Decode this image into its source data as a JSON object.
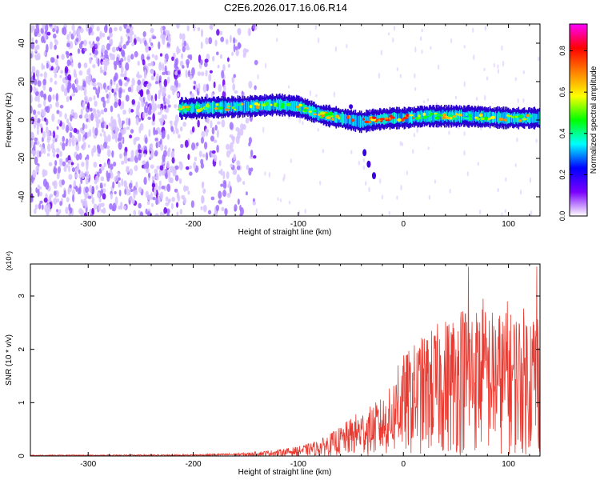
{
  "title": "C2E6.2026.017.16.06.R14",
  "chart_data": [
    {
      "type": "heatmap",
      "xlabel": "Height of straight line (km)",
      "ylabel": "Frequency (Hz)",
      "xlim": [
        -355,
        130
      ],
      "ylim": [
        -50,
        50
      ],
      "xticks": [
        -300,
        -200,
        -100,
        0,
        100
      ],
      "yticks": [
        -40,
        -20,
        0,
        20,
        40
      ],
      "colorbar": {
        "label": "Normalized spectral amplitude",
        "range": [
          0.0,
          0.93
        ],
        "ticks": [
          0.0,
          0.2,
          0.4,
          0.6,
          0.8
        ],
        "colormap": [
          "#ffffff",
          "#7a00ff",
          "#0000ff",
          "#00ffff",
          "#00ff00",
          "#ffff00",
          "#ff8000",
          "#ff0000",
          "#ff00ff"
        ]
      },
      "ridge": {
        "start_km": -213,
        "points": [
          [
            -213,
            6
          ],
          [
            -150,
            7
          ],
          [
            -120,
            8
          ],
          [
            -100,
            7
          ],
          [
            -80,
            3
          ],
          [
            -60,
            1
          ],
          [
            -40,
            -1
          ],
          [
            -30,
            0
          ],
          [
            -10,
            1
          ],
          [
            0,
            1
          ],
          [
            20,
            2
          ],
          [
            60,
            2
          ],
          [
            100,
            1
          ],
          [
            130,
            1
          ]
        ]
      },
      "spur": {
        "points": [
          [
            -37,
            -17
          ],
          [
            -33,
            -23
          ],
          [
            -28,
            -29
          ]
        ]
      }
    },
    {
      "type": "line",
      "xlabel": "Height of straight line (km)",
      "ylabel": "SNR (10 * v/v)",
      "multiplier": "(x10⁴)",
      "xlim": [
        -355,
        130
      ],
      "ylim": [
        0,
        3.6
      ],
      "xticks": [
        -300,
        -200,
        -100,
        0,
        100
      ],
      "yticks": [
        0,
        1,
        2,
        3
      ],
      "color": "#e83a30",
      "envelope": [
        [
          -355,
          0.02
        ],
        [
          -200,
          0.03
        ],
        [
          -150,
          0.06
        ],
        [
          -120,
          0.12
        ],
        [
          -100,
          0.18
        ],
        [
          -80,
          0.3
        ],
        [
          -60,
          0.55
        ],
        [
          -45,
          0.8
        ],
        [
          -30,
          0.95
        ],
        [
          -15,
          1.2
        ],
        [
          0,
          1.9
        ],
        [
          20,
          2.3
        ],
        [
          40,
          2.6
        ],
        [
          60,
          2.9
        ],
        [
          80,
          2.8
        ],
        [
          100,
          2.7
        ],
        [
          115,
          2.8
        ],
        [
          130,
          2.9
        ]
      ],
      "peaks": [
        [
          -5,
          1.7
        ],
        [
          16,
          2.0
        ],
        [
          55,
          2.7
        ],
        [
          62,
          3.55
        ],
        [
          76,
          2.95
        ],
        [
          99,
          2.9
        ],
        [
          127,
          3.55
        ]
      ]
    }
  ]
}
